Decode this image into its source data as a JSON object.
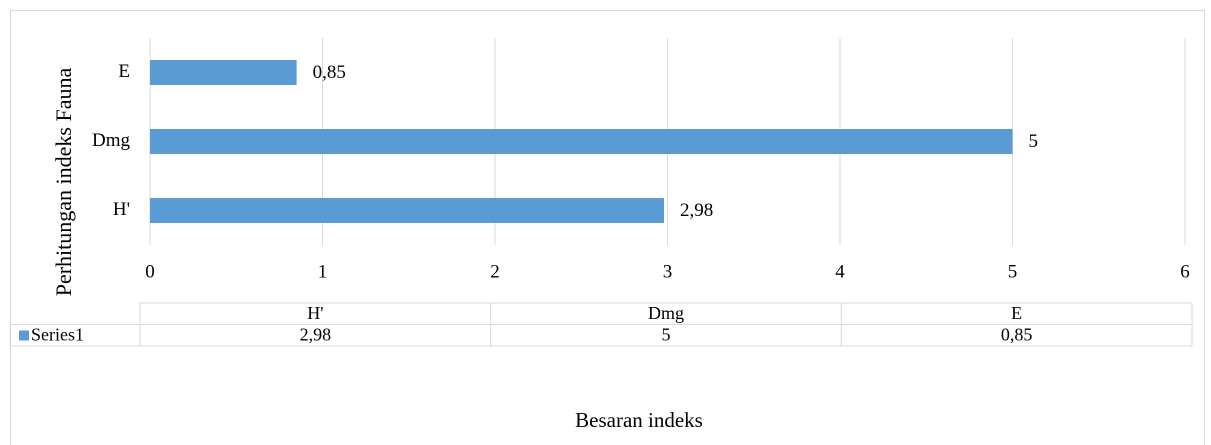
{
  "chart_data": {
    "type": "hbar",
    "y_label": "Perhitungan indeks Fauna",
    "x_label": "Besaran indeks",
    "categories": [
      "H'",
      "Dmg",
      "E"
    ],
    "series": [
      {
        "name": "Series1",
        "color": "#5b9bd5",
        "values": [
          2.98,
          5,
          0.85
        ],
        "value_labels": [
          "2,98",
          "5",
          "0,85"
        ]
      }
    ],
    "xlim": [
      0,
      6
    ],
    "xticks": [
      0,
      1,
      2,
      3,
      4,
      5,
      6
    ],
    "grid": true,
    "data_table": true
  }
}
